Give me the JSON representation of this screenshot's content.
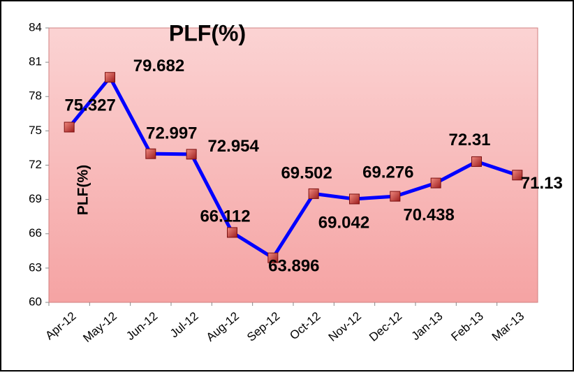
{
  "chart_data": {
    "type": "line",
    "title": "PLF(%)",
    "y_label": "PLF(%)",
    "categories": [
      "Apr-12",
      "May-12",
      "Jun-12",
      "Jul-12",
      "Aug-12",
      "Sep-12",
      "Oct-12",
      "Nov-12",
      "Dec-12",
      "Jan-13",
      "Feb-13",
      "Mar-13"
    ],
    "series": [
      {
        "name": "PLF(%)",
        "color": "#0000ff",
        "values": [
          75.327,
          79.682,
          72.997,
          72.954,
          66.112,
          63.896,
          69.502,
          69.042,
          69.276,
          70.438,
          72.31,
          71.13
        ]
      }
    ],
    "ylim": [
      60,
      84
    ],
    "yticks": [
      60,
      63,
      66,
      69,
      72,
      75,
      78,
      81,
      84
    ],
    "grid": false
  }
}
